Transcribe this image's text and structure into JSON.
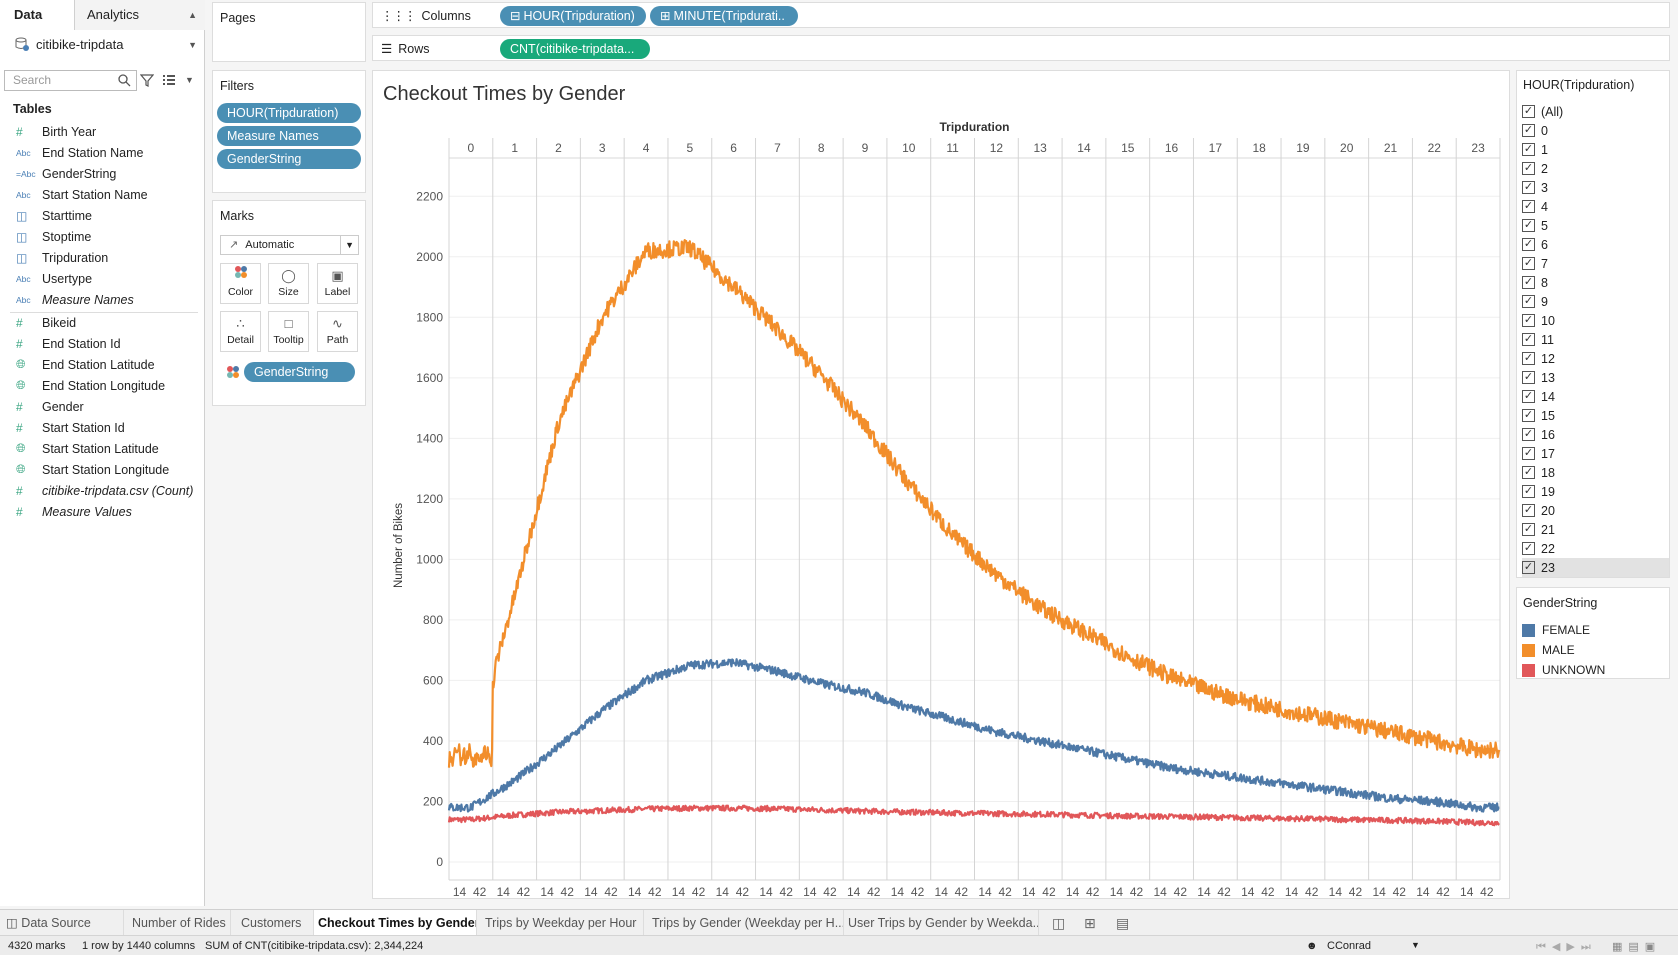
{
  "data_pane": {
    "tab_data": "Data",
    "tab_analytics": "Analytics",
    "datasource_name": "citibike-tripdata",
    "search_placeholder": "Search",
    "tables_heading": "Tables",
    "dimensions": [
      {
        "icon": "#",
        "label": "Birth Year"
      },
      {
        "icon": "Abc",
        "label": "End Station Name"
      },
      {
        "icon": "=Abc",
        "label": "GenderString"
      },
      {
        "icon": "Abc",
        "label": "Start Station Name"
      },
      {
        "icon": "calendar",
        "label": "Starttime"
      },
      {
        "icon": "calendar",
        "label": "Stoptime"
      },
      {
        "icon": "calendar",
        "label": "Tripduration"
      },
      {
        "icon": "Abc",
        "label": "Usertype"
      },
      {
        "icon": "Abc",
        "label": "Measure Names"
      }
    ],
    "measures": [
      {
        "icon": "#",
        "label": "Bikeid"
      },
      {
        "icon": "#",
        "label": "End Station Id"
      },
      {
        "icon": "globe",
        "label": "End Station Latitude"
      },
      {
        "icon": "globe",
        "label": "End Station Longitude"
      },
      {
        "icon": "#",
        "label": "Gender"
      },
      {
        "icon": "#",
        "label": "Start Station Id"
      },
      {
        "icon": "globe",
        "label": "Start Station Latitude"
      },
      {
        "icon": "globe",
        "label": "Start Station Longitude"
      },
      {
        "icon": "#",
        "label": "citibike-tripdata.csv (Count)"
      },
      {
        "icon": "#",
        "label": "Measure Values"
      }
    ]
  },
  "pages_card": {
    "title": "Pages"
  },
  "filters_card": {
    "title": "Filters",
    "pills": [
      "HOUR(Tripduration)",
      "Measure Names",
      "GenderString"
    ]
  },
  "marks_card": {
    "title": "Marks",
    "mark_type": "Automatic",
    "buttons": [
      "Color",
      "Size",
      "Label",
      "Detail",
      "Tooltip",
      "Path"
    ],
    "color_pill": "GenderString"
  },
  "shelves": {
    "columns_label": "Columns",
    "columns_pills": [
      "HOUR(Tripduration)",
      "MINUTE(Tripdurati.."
    ],
    "rows_label": "Rows",
    "rows_pill": "CNT(citibike-tripdata..."
  },
  "hour_filter": {
    "title": "HOUR(Tripduration)",
    "items": [
      "(All)",
      "0",
      "1",
      "2",
      "3",
      "4",
      "5",
      "6",
      "7",
      "8",
      "9",
      "10",
      "11",
      "12",
      "13",
      "14",
      "15",
      "16",
      "17",
      "18",
      "19",
      "20",
      "21",
      "22",
      "23"
    ],
    "selected_item": "23"
  },
  "gender_legend": {
    "title": "GenderString",
    "items": [
      {
        "label": "FEMALE",
        "color": "#4e79a7"
      },
      {
        "label": "MALE",
        "color": "#f28e2b"
      },
      {
        "label": "UNKNOWN",
        "color": "#e15759"
      }
    ]
  },
  "chart_data": {
    "type": "line",
    "title": "Checkout Times by Gender",
    "xlabel_top": "Tripduration",
    "ylabel": "Number of Bikes",
    "hours": [
      "0",
      "1",
      "2",
      "3",
      "4",
      "5",
      "6",
      "7",
      "8",
      "9",
      "10",
      "11",
      "12",
      "13",
      "14",
      "15",
      "16",
      "17",
      "18",
      "19",
      "20",
      "21",
      "22",
      "23"
    ],
    "minute_tick_labels": [
      "14",
      "42"
    ],
    "ylim": [
      0,
      2300
    ],
    "yticks": [
      0,
      200,
      400,
      600,
      800,
      1000,
      1200,
      1400,
      1600,
      1800,
      2000,
      2200
    ],
    "grid": true,
    "series": [
      {
        "name": "MALE",
        "color": "#f28e2b",
        "hourly_values": [
          350,
          880,
          1450,
          1800,
          2020,
          2030,
          1900,
          1760,
          1610,
          1440,
          1250,
          1080,
          950,
          840,
          760,
          680,
          610,
          560,
          520,
          490,
          460,
          430,
          400,
          370
        ]
      },
      {
        "name": "FEMALE",
        "color": "#4e79a7",
        "hourly_values": [
          180,
          270,
          380,
          500,
          600,
          650,
          660,
          630,
          590,
          560,
          510,
          470,
          430,
          400,
          370,
          340,
          310,
          290,
          270,
          250,
          230,
          210,
          200,
          180
        ]
      },
      {
        "name": "UNKNOWN",
        "color": "#e15759",
        "hourly_values": [
          140,
          155,
          165,
          170,
          175,
          178,
          178,
          176,
          172,
          168,
          165,
          162,
          160,
          158,
          155,
          152,
          150,
          148,
          145,
          143,
          140,
          138,
          135,
          130
        ]
      }
    ]
  },
  "sheet_tabs": {
    "data_source": "Data Source",
    "tabs": [
      "Number of Rides",
      "Customers",
      "Checkout Times by Gender",
      "Trips by Weekday per Hour",
      "Trips by Gender (Weekday per H...",
      "User Trips by Gender by Weekda..."
    ],
    "active_tab": "Checkout Times by Gender"
  },
  "status_bar": {
    "marks": "4320 marks",
    "dims": "1 row by 1440 columns",
    "sum": "SUM of CNT(citibike-tripdata.csv): 2,344,224",
    "user": "CConrad"
  }
}
